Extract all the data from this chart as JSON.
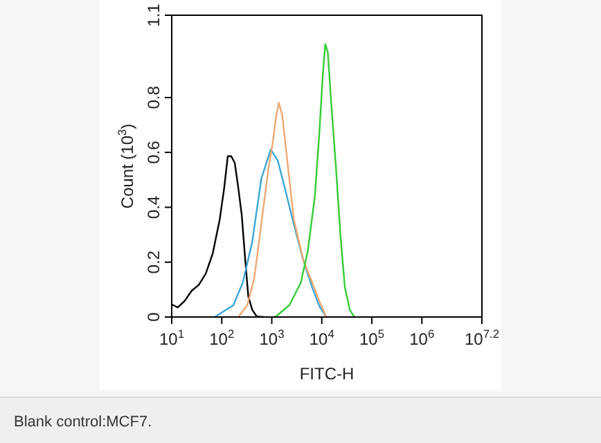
{
  "chart_data": {
    "type": "line",
    "xlabel": "FITC-H",
    "ylabel": "Count (10$^{3}$)",
    "log": "x",
    "xlim": [
      10,
      15848932
    ],
    "xticks": [
      {
        "value": 10,
        "label": "10$^{1}$"
      },
      {
        "value": 100,
        "label": "10$^{2}$"
      },
      {
        "value": 1000,
        "label": "10$^{3}$"
      },
      {
        "value": 10000,
        "label": "10$^{4}$"
      },
      {
        "value": 100000,
        "label": "10$^{5}$"
      },
      {
        "value": 1000000,
        "label": "10$^{6}$"
      },
      {
        "value": 15848932,
        "label": "10$^{7.2}$"
      }
    ],
    "ylim": [
      0,
      1.1
    ],
    "yticks": [
      0,
      0.2,
      0.4,
      0.6,
      0.8,
      1.1
    ],
    "grid": false,
    "line_style": "solid",
    "annotations": [
      "Blank control:MCF7."
    ],
    "series": [
      {
        "color": "#000000",
        "x": [
          10,
          13.2,
          18.2,
          25.1,
          34.7,
          47.9,
          66.1,
          91.2,
          112,
          132,
          155,
          182,
          214,
          251,
          295,
          339,
          407,
          501,
          692
        ],
        "values": [
          0.046,
          0.035,
          0.059,
          0.096,
          0.117,
          0.158,
          0.232,
          0.356,
          0.471,
          0.586,
          0.586,
          0.562,
          0.471,
          0.372,
          0.208,
          0.076,
          0.026,
          0.002,
          0
        ]
      },
      {
        "color": "#3aa6d6",
        "x": [
          72.4,
          170,
          263,
          407,
          617,
          955,
          1318,
          1820,
          2754,
          4266,
          6457,
          8913,
          12300
        ],
        "values": [
          0,
          0.043,
          0.125,
          0.274,
          0.504,
          0.611,
          0.57,
          0.471,
          0.338,
          0.206,
          0.107,
          0.04,
          0
        ]
      },
      {
        "color": "#f0a870",
        "x": [
          214,
          324,
          447,
          617,
          851,
          1047,
          1230,
          1380,
          1622,
          1995,
          2754,
          4266,
          6457,
          8913,
          12300
        ],
        "values": [
          0,
          0.043,
          0.142,
          0.339,
          0.537,
          0.636,
          0.735,
          0.781,
          0.735,
          0.587,
          0.356,
          0.206,
          0.125,
          0.059,
          0
        ]
      },
      {
        "color": "#33cc33",
        "x": [
          1175,
          2239,
          3802,
          5248,
          7244,
          8913,
          10470,
          11750,
          13180,
          15140,
          19050,
          23440,
          28840,
          36310,
          44670
        ],
        "values": [
          0,
          0.043,
          0.125,
          0.241,
          0.438,
          0.669,
          0.883,
          0.995,
          0.965,
          0.801,
          0.553,
          0.305,
          0.109,
          0.026,
          0
        ]
      }
    ]
  }
}
